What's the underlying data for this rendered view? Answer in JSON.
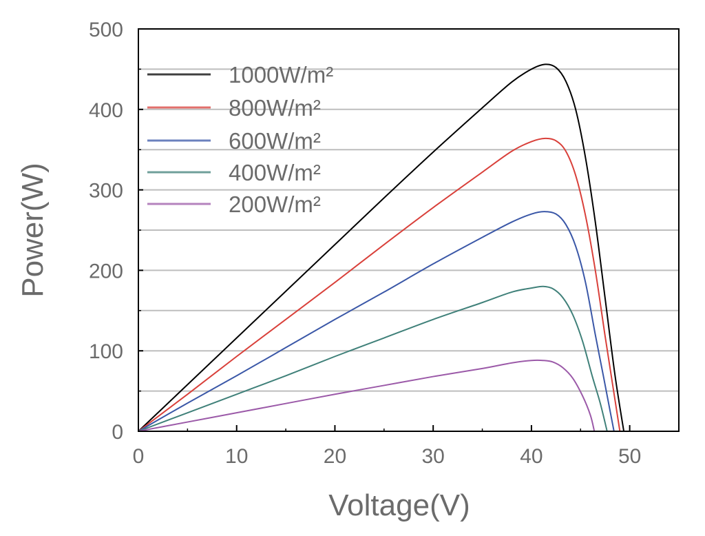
{
  "chart_data": {
    "type": "line",
    "xlabel": "Voltage(V)",
    "ylabel": "Power(W)",
    "xlim": [
      0,
      55
    ],
    "ylim": [
      0,
      500
    ],
    "xticks": [
      "0",
      "10",
      "20",
      "30",
      "40",
      "50"
    ],
    "xtick_values": [
      0,
      10,
      20,
      30,
      40,
      50
    ],
    "yticks": [
      "0",
      "100",
      "200",
      "300",
      "400",
      "500"
    ],
    "ytick_values": [
      0,
      100,
      200,
      300,
      400,
      500
    ],
    "grid": "horizontal every 50",
    "legend_position": "top-left",
    "series": [
      {
        "name": "1000W/m²",
        "color": "#000000",
        "x": [
          0,
          5,
          10,
          15,
          20,
          25,
          30,
          35,
          38,
          40,
          41.4,
          42.5,
          43.5,
          44.5,
          45.5,
          46.5,
          47.5,
          48.5,
          49.4
        ],
        "y": [
          0,
          58,
          116,
          174,
          232,
          290,
          347,
          402,
          434,
          450,
          456,
          452,
          435,
          400,
          340,
          260,
          165,
          70,
          0
        ]
      },
      {
        "name": "800W/m²",
        "color": "#d9403a",
        "x": [
          0,
          5,
          10,
          15,
          20,
          25,
          30,
          35,
          38,
          40,
          41.4,
          42.5,
          43.5,
          44.5,
          45.5,
          46.5,
          47.5,
          48.3,
          49.0
        ],
        "y": [
          0,
          46,
          93,
          139,
          185,
          232,
          278,
          322,
          348,
          360,
          364,
          361,
          348,
          318,
          268,
          200,
          118,
          55,
          0
        ]
      },
      {
        "name": "600W/m²",
        "color": "#3a57a7",
        "x": [
          0,
          5,
          10,
          15,
          20,
          25,
          30,
          35,
          38,
          40,
          41.3,
          42.5,
          43.5,
          44.5,
          45.5,
          46.5,
          47.3,
          48.4
        ],
        "y": [
          0,
          35,
          69,
          104,
          139,
          173,
          208,
          241,
          260,
          270,
          273,
          270,
          257,
          230,
          185,
          120,
          70,
          0
        ]
      },
      {
        "name": "400W/m²",
        "color": "#3f8079",
        "x": [
          0,
          5,
          10,
          15,
          20,
          25,
          30,
          35,
          38,
          40,
          41.2,
          42.2,
          43.2,
          44.2,
          45.2,
          46.2,
          47.0,
          47.7
        ],
        "y": [
          0,
          23,
          46,
          69,
          93,
          116,
          139,
          160,
          173,
          178,
          180,
          177,
          166,
          145,
          112,
          68,
          35,
          0
        ]
      },
      {
        "name": "200W/m²",
        "color": "#9b59a8",
        "x": [
          0,
          5,
          10,
          15,
          20,
          25,
          30,
          35,
          38,
          40,
          41.2,
          42.2,
          43.2,
          44.2,
          45.2,
          46.0,
          46.4
        ],
        "y": [
          0,
          11.5,
          23,
          34.5,
          46,
          57,
          68,
          78,
          85,
          88,
          88,
          86,
          79,
          66,
          44,
          20,
          0
        ]
      }
    ]
  }
}
